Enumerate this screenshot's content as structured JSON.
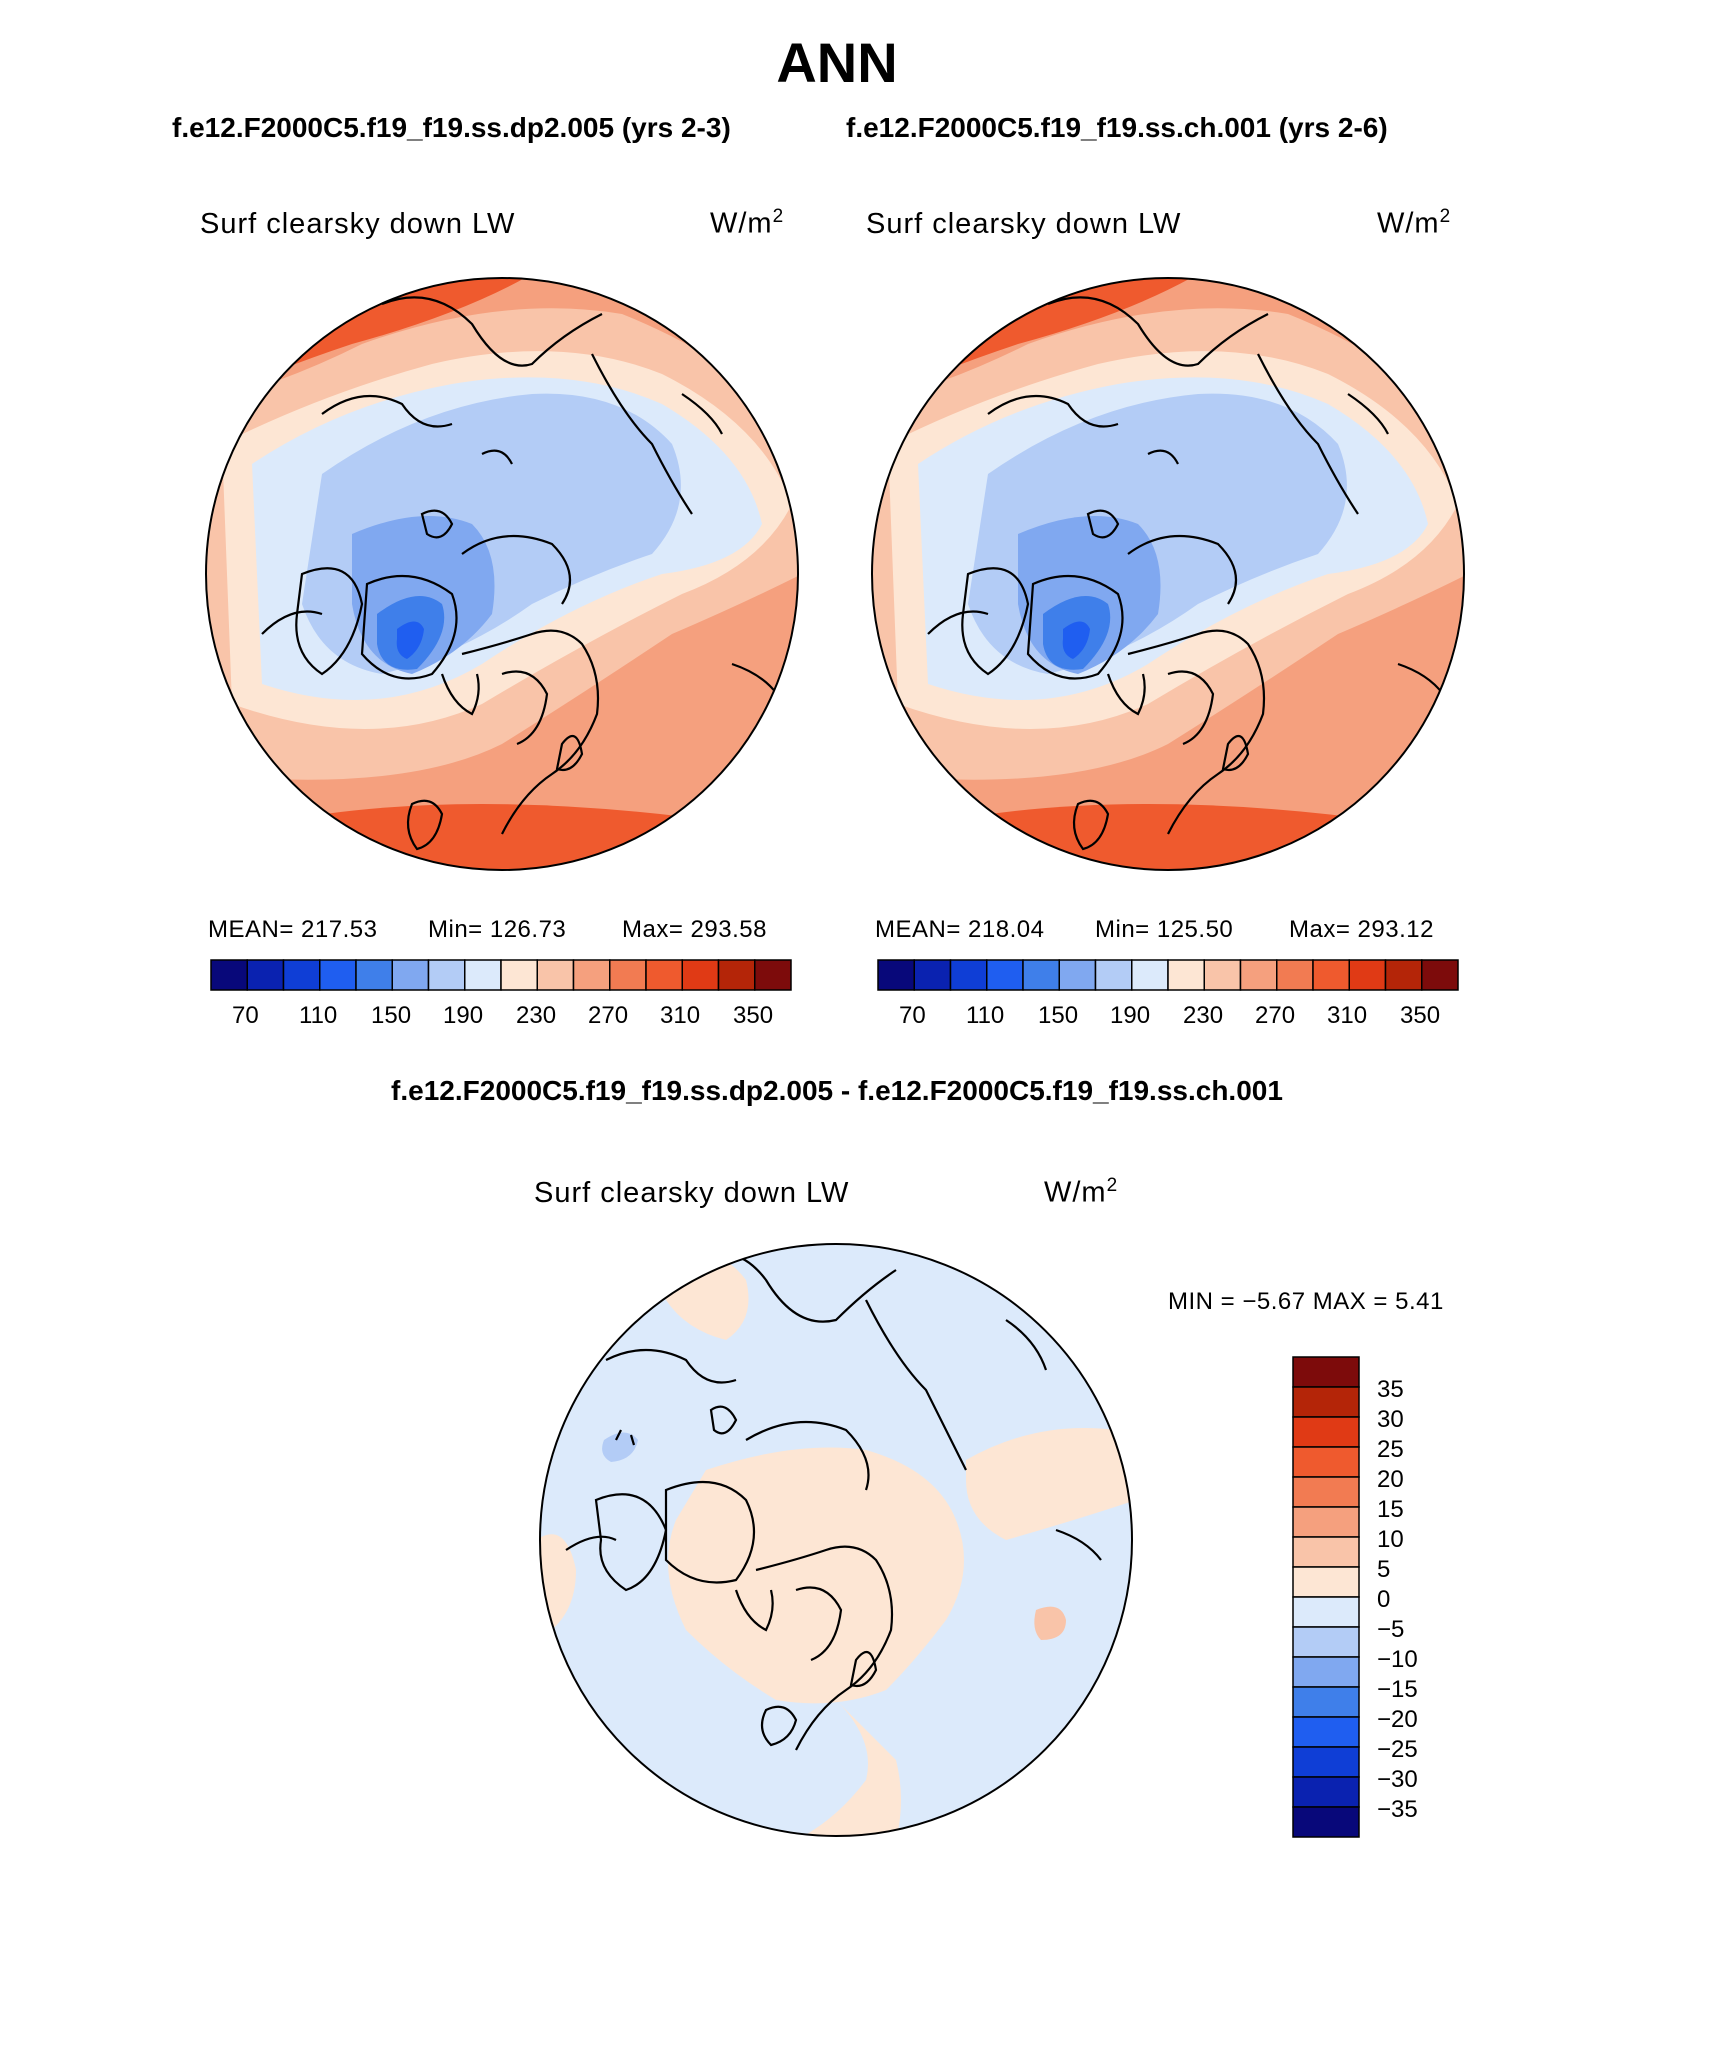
{
  "title": "ANN",
  "case_titles": {
    "left": "f.e12.F2000C5.f19_f19.ss.dp2.005 (yrs 2-3)",
    "right": "f.e12.F2000C5.f19_f19.ss.ch.001 (yrs 2-6)"
  },
  "difference_title": "f.e12.F2000C5.f19_f19.ss.dp2.005 - f.e12.F2000C5.f19_f19.ss.ch.001",
  "variable": "Surf clearsky down LW",
  "units": {
    "base": "W/m",
    "exponent": "2"
  },
  "panels": [
    {
      "stats": {
        "mean": "MEAN= 217.53",
        "min": "Min= 126.73",
        "max": "Max= 293.58"
      }
    },
    {
      "stats": {
        "mean": "MEAN= 218.04",
        "min": "Min= 125.50",
        "max": "Max= 293.12"
      }
    }
  ],
  "difference_panel": {
    "minmax": "MIN =   −5.67 MAX =    5.41"
  },
  "colorbar": {
    "tick_labels": [
      "70",
      "110",
      "150",
      "190",
      "230",
      "270",
      "310",
      "350"
    ],
    "colors": [
      "#08087a",
      "#0a22b0",
      "#0f3ed6",
      "#1f5ef0",
      "#3f7fea",
      "#80a8f0",
      "#b3ccf6",
      "#dceafb",
      "#fde6d4",
      "#f9c4a9",
      "#f5a07e",
      "#f27b52",
      "#ef5a2e",
      "#e03a15",
      "#b42508",
      "#7d0b0b"
    ]
  },
  "diff_colorbar": {
    "tick_labels": [
      "35",
      "30",
      "25",
      "20",
      "15",
      "10",
      "5",
      "0",
      "−5",
      "−10",
      "−15",
      "−20",
      "−25",
      "−30",
      "−35"
    ],
    "colors": [
      "#7d0b0b",
      "#b42508",
      "#e03a15",
      "#ef5a2e",
      "#f27b52",
      "#f5a07e",
      "#f9c4a9",
      "#fde6d4",
      "#dceafb",
      "#b3ccf6",
      "#80a8f0",
      "#3f7fea",
      "#1f5ef0",
      "#0f3ed6",
      "#0a22b0",
      "#08087a"
    ]
  },
  "map_colors": {
    "ocean_warm": "#f5a07e",
    "warm_dark": "#ef5a2e",
    "mid_warm": "#f9c4a9",
    "pale_warm": "#fde6d4",
    "pale_cool": "#dceafb",
    "light_cool": "#b3ccf6",
    "mid_cool": "#80a8f0",
    "deep_cool": "#3f7fea",
    "core": "#1f5ef0"
  }
}
